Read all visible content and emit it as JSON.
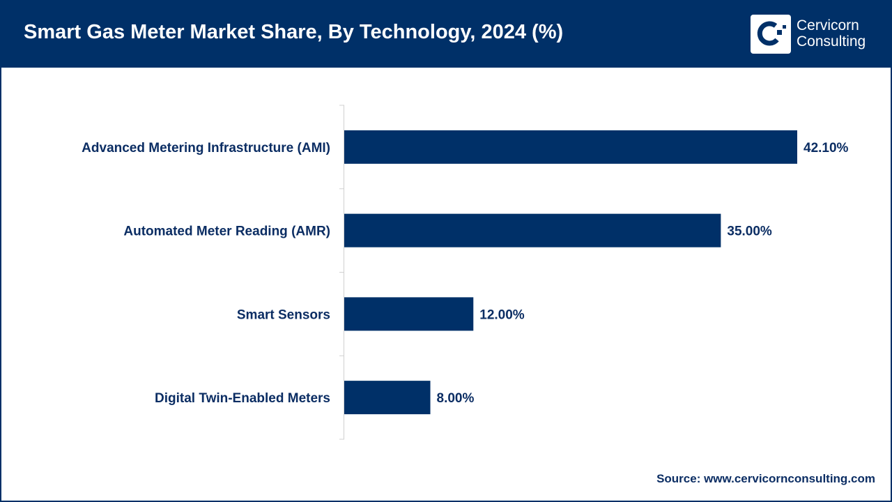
{
  "header": {
    "title": "Smart Gas Meter Market Share, By Technology, 2024 (%)",
    "logo_text_line1": "Cervicorn",
    "logo_text_line2": "Consulting"
  },
  "source": "Source: www.cervicornconsulting.com",
  "colors": {
    "header": "#003068",
    "bar": "#003068",
    "label": "#0b2d63"
  },
  "chart_data": {
    "type": "bar",
    "orientation": "horizontal",
    "title": "Smart Gas Meter Market Share, By Technology, 2024 (%)",
    "categories": [
      "Advanced Metering Infrastructure (AMI)",
      "Automated Meter Reading (AMR)",
      "Smart Sensors",
      "Digital Twin-Enabled Meters"
    ],
    "values": [
      42.1,
      35.0,
      12.0,
      8.0
    ],
    "data_labels": [
      "42.10%",
      "35.00%",
      "12.00%",
      "8.00%"
    ],
    "xlim": [
      0,
      42.1
    ],
    "grid": false,
    "legend": "none"
  }
}
